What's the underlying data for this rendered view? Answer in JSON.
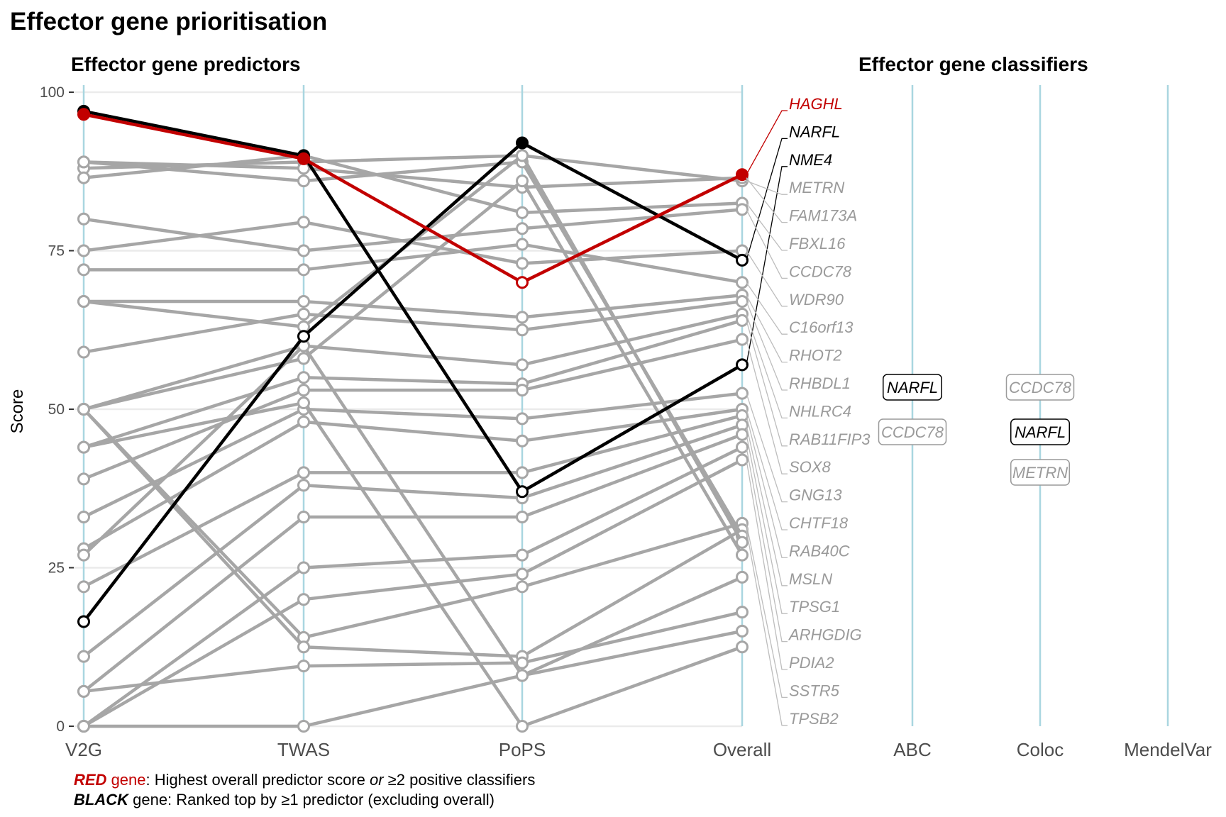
{
  "chart_data": {
    "type": "line",
    "title": "Effector gene prioritisation",
    "predictor_panel_title": "Effector gene predictors",
    "classifier_panel_title": "Effector gene classifiers",
    "ylabel": "Score",
    "ylim": [
      0,
      100
    ],
    "yticks": [
      0,
      25,
      50,
      75,
      100
    ],
    "grid": true,
    "categories": [
      "V2G",
      "TWAS",
      "PoPS",
      "Overall"
    ],
    "classifier_columns": [
      "ABC",
      "Coloc",
      "MendelVar"
    ],
    "colors": {
      "red": "#c20000",
      "black": "#000000",
      "grey": "#a6a6a6",
      "axis_line": "#a9d6e0",
      "grid": "#ebebeb"
    },
    "series": [
      {
        "name": "HAGHL",
        "group": "red",
        "values": [
          96.5,
          89.5,
          70,
          87
        ],
        "filled": [
          true,
          true,
          false,
          true
        ]
      },
      {
        "name": "NARFL",
        "group": "black",
        "values": [
          16.5,
          61.5,
          92,
          73.5
        ],
        "filled": [
          false,
          false,
          true,
          false
        ]
      },
      {
        "name": "NME4",
        "group": "black",
        "values": [
          97,
          90,
          37,
          57
        ],
        "filled": [
          true,
          true,
          false,
          false
        ]
      },
      {
        "name": "METRN",
        "group": "grey",
        "values": [
          88,
          89,
          90,
          86
        ]
      },
      {
        "name": "FAM173A",
        "group": "grey",
        "values": [
          89,
          88,
          85,
          86.5
        ]
      },
      {
        "name": "FBXL16",
        "group": "grey",
        "values": [
          86.5,
          90,
          81,
          82.5
        ]
      },
      {
        "name": "CCDC78",
        "group": "grey",
        "values": [
          80,
          75,
          78.5,
          81.5
        ]
      },
      {
        "name": "WDR90",
        "group": "grey",
        "values": [
          75,
          79.5,
          73,
          75
        ]
      },
      {
        "name": "C16orf13",
        "group": "grey",
        "values": [
          72,
          72,
          76,
          70
        ]
      },
      {
        "name": "RHOT2",
        "group": "grey",
        "values": [
          67,
          67,
          64.5,
          68
        ]
      },
      {
        "name": "RHBDL1",
        "group": "grey",
        "values": [
          59,
          65,
          62.5,
          67
        ]
      },
      {
        "name": "NHLRC4",
        "group": "grey",
        "values": [
          50,
          60,
          57,
          65
        ]
      },
      {
        "name": "RAB11FIP3",
        "group": "grey",
        "values": [
          44,
          55,
          54,
          64
        ]
      },
      {
        "name": "SOX8",
        "group": "grey",
        "values": [
          39,
          53,
          53,
          61
        ]
      },
      {
        "name": "GNG13",
        "group": "grey",
        "values": [
          33,
          50,
          48.5,
          52.5
        ]
      },
      {
        "name": "CHTF18",
        "group": "grey",
        "values": [
          28,
          48,
          45,
          50
        ]
      },
      {
        "name": "RAB40C",
        "group": "grey",
        "values": [
          22,
          40,
          40,
          49
        ]
      },
      {
        "name": "MSLN",
        "group": "grey",
        "values": [
          11,
          38,
          36,
          47.5
        ]
      },
      {
        "name": "TPSG1",
        "group": "grey",
        "values": [
          5.5,
          33,
          33,
          46
        ]
      },
      {
        "name": "ARHGDIG",
        "group": "grey",
        "values": [
          0,
          25,
          27,
          44
        ]
      },
      {
        "name": "PDIA2",
        "group": "grey",
        "values": [
          0,
          20,
          24,
          42
        ]
      },
      {
        "name": "SSTR5",
        "group": "grey",
        "values": [
          50,
          14,
          22,
          32
        ]
      },
      {
        "name": "TPSB2",
        "group": "grey",
        "values": [
          50,
          12.5,
          11,
          31
        ]
      },
      {
        "name": "",
        "group": "grey",
        "values": [
          89,
          86,
          89,
          30
        ]
      },
      {
        "name": "",
        "group": "grey",
        "values": [
          67,
          63,
          90,
          29
        ]
      },
      {
        "name": "",
        "group": "grey",
        "values": [
          50,
          58,
          86,
          27
        ]
      },
      {
        "name": "",
        "group": "grey",
        "values": [
          27,
          60,
          8,
          23.5
        ]
      },
      {
        "name": "",
        "group": "grey",
        "values": [
          5.5,
          9.5,
          10,
          18
        ]
      },
      {
        "name": "",
        "group": "grey",
        "values": [
          0,
          0,
          8,
          15
        ]
      },
      {
        "name": "",
        "group": "grey",
        "values": [
          44,
          51,
          0,
          12.5
        ]
      }
    ],
    "label_color": {
      "HAGHL": "red",
      "NARFL": "black",
      "NME4": "black"
    },
    "classifier_labels": {
      "ABC": [
        {
          "gene": "NARFL",
          "group": "black"
        },
        {
          "gene": "CCDC78",
          "group": "grey"
        }
      ],
      "Coloc": [
        {
          "gene": "CCDC78",
          "group": "grey"
        },
        {
          "gene": "NARFL",
          "group": "black"
        },
        {
          "gene": "METRN",
          "group": "grey"
        }
      ],
      "MendelVar": []
    }
  },
  "legend": {
    "line1_red_word": "RED",
    "line1_gene_word": " gene",
    "line1_mid": ": Highest overall predictor score ",
    "line1_or": "or",
    "line1_end": " ≥2 positive classifiers",
    "line2_black_word": "BLACK",
    "line2_rest": " gene: Ranked top by ≥1 predictor (excluding overall)"
  }
}
